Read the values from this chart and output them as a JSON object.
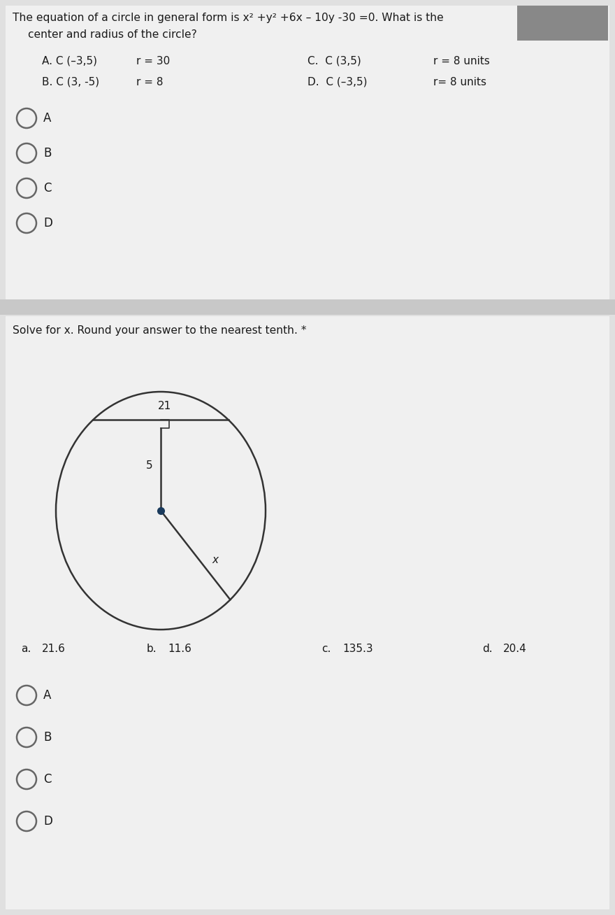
{
  "bg_color": "#e0e0e0",
  "card_color": "#f0f0f0",
  "sep_color": "#c8c8c8",
  "q1_title1": "The equation of a circle in general form is x² +y² +6x – 10y -30 =0. What is the",
  "q1_title2": "center and radius of the circle?",
  "q1_opt_A_label": "A. C (–3,5)",
  "q1_opt_A_r": "r = 30",
  "q1_opt_B_label": "B. C (3, -5)",
  "q1_opt_B_r": "r = 8",
  "q1_opt_C_label": "C.  C (3,5)",
  "q1_opt_C_r": "r = 8 units",
  "q1_opt_D_label": "D.  C (–3,5)",
  "q1_opt_D_r": "r= 8 units",
  "q1_radios": [
    "A",
    "B",
    "C",
    "D"
  ],
  "q2_title": "Solve for x. Round your answer to the nearest tenth. *",
  "q2_chord_label": "21",
  "q2_seg_label": "5",
  "q2_x_label": "x",
  "q2_opts": [
    {
      "label": "a.",
      "value": "21.6"
    },
    {
      "label": "b.",
      "value": "11.6"
    },
    {
      "label": "c.",
      "value": "135.3"
    },
    {
      "label": "d.",
      "value": "20.4"
    }
  ],
  "q2_radios": [
    "A",
    "B",
    "C",
    "D"
  ],
  "radio_color": "#666666",
  "text_color": "#1a1a1a",
  "line_color": "#333333",
  "dot_color": "#1a3a5c"
}
